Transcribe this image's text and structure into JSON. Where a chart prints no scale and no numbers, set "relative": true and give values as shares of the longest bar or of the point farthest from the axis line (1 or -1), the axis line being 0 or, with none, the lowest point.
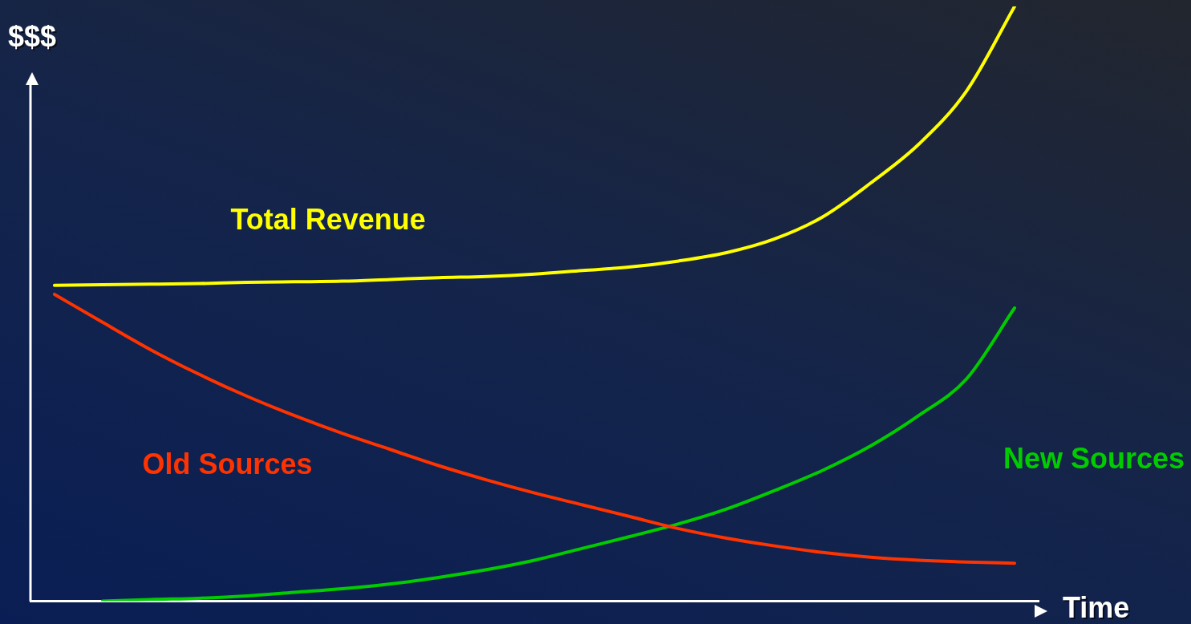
{
  "chart_data": {
    "type": "line",
    "relative": true,
    "xlabel": "Time",
    "ylabel": "$$$",
    "grid": false,
    "legend": false,
    "marker": "none",
    "line_style": "solid",
    "categories": [
      null,
      null,
      null,
      null,
      null,
      null,
      null,
      null,
      null,
      null,
      null,
      null,
      null,
      null,
      null,
      null,
      null,
      null,
      null,
      null,
      null
    ],
    "series": [
      {
        "name": "Total Revenue",
        "color": "#ffff00",
        "values": [
          0.531,
          0.532,
          0.533,
          0.534,
          0.536,
          0.537,
          0.538,
          0.541,
          0.544,
          0.546,
          0.55,
          0.556,
          0.562,
          0.572,
          0.586,
          0.609,
          0.646,
          0.703,
          0.768,
          0.858,
          1
        ]
      },
      {
        "name": "Old Sources",
        "color": "#ff3300",
        "values": [
          0.516,
          0.469,
          0.423,
          0.382,
          0.345,
          0.312,
          0.282,
          0.255,
          0.228,
          0.204,
          0.182,
          0.162,
          0.142,
          0.122,
          0.106,
          0.093,
          0.082,
          0.074,
          0.069,
          0.066,
          0.064
        ]
      },
      {
        "name": "New Sources",
        "color": "#00cc00",
        "values": [
          null,
          0,
          0.003,
          0.005,
          0.009,
          0.015,
          0.021,
          0.029,
          0.04,
          0.053,
          0.069,
          0.089,
          0.109,
          0.13,
          0.155,
          0.186,
          0.22,
          0.261,
          0.312,
          0.374,
          0.493
        ]
      }
    ]
  }
}
